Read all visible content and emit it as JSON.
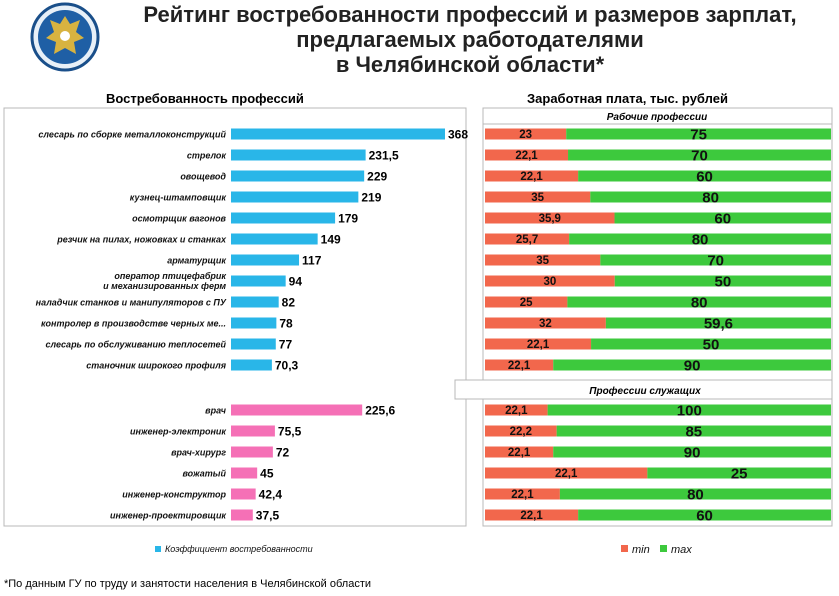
{
  "title": {
    "line1": "Рейтинг востребованности профессий и размеров зарплат,",
    "line2": "предлагаемых работодателями",
    "line3": "в Челябинской области*"
  },
  "left_header": "Востребованность профессий",
  "right_header": "Заработная плата, тыс. рублей",
  "section_worker": "Рабочие профессии",
  "section_employee": "Профессии служащих",
  "legend_left": "Коэффициент востребованности",
  "legend_min": "min",
  "legend_max": "max",
  "footnote": "*По данным ГУ по труду и занятости населения в Челябинской области",
  "colors": {
    "worker": "#29b6e8",
    "employee": "#f570b6",
    "min": "#f2674c",
    "max": "#3dc93d"
  },
  "chart_data": [
    {
      "type": "bar",
      "orientation": "horizontal",
      "legend": [
        "Коэффициент востребованности"
      ],
      "categories": [
        "слесарь по сборке металлоконструкций",
        "стрелок",
        "овощевод",
        "кузнец-штамповщик",
        "осмотрщик вагонов",
        "резчик на пилах,  ножовках и станках",
        "арматурщик",
        "оператор птицефабрик\nи механизированных ферм",
        "наладчик станков и манипуляторов  с ПУ",
        "контролер в производстве черных ме...",
        "слесарь по обслуживанию теплосетей",
        "станочник широкого профиля",
        "врач",
        "инженер-электроник",
        "врач-хирург",
        "вожатый",
        "инженер-конструктор",
        "инженер-проектировщик"
      ],
      "groups": [
        "worker",
        "worker",
        "worker",
        "worker",
        "worker",
        "worker",
        "worker",
        "worker",
        "worker",
        "worker",
        "worker",
        "worker",
        "employee",
        "employee",
        "employee",
        "employee",
        "employee",
        "employee"
      ],
      "values": [
        368,
        231.5,
        229,
        219,
        179,
        149,
        117,
        94,
        82,
        78,
        77,
        70.3,
        225.6,
        75.5,
        72,
        45,
        42.4,
        37.5
      ],
      "value_labels": [
        "368",
        "231,5",
        "229",
        "219",
        "179",
        "149",
        "117",
        "94",
        "82",
        "78",
        "77",
        "70,3",
        "225,6",
        "75,5",
        "72",
        "45",
        "42,4",
        "37,5"
      ]
    },
    {
      "type": "bar",
      "orientation": "horizontal",
      "stacked": true,
      "percent": true,
      "series": [
        {
          "name": "min",
          "values": [
            23,
            22.1,
            22.1,
            35,
            35.9,
            25.7,
            35,
            30,
            25,
            32,
            22.1,
            22.1,
            22.1,
            22.2,
            22.1,
            22.1,
            22.1,
            22.1
          ],
          "labels": [
            "23",
            "22,1",
            "22,1",
            "35",
            "35,9",
            "25,7",
            "35",
            "30",
            "25",
            "32",
            "22,1",
            "22,1",
            "22,1",
            "22,2",
            "22,1",
            "22,1",
            "22,1",
            "22,1"
          ]
        },
        {
          "name": "max",
          "values": [
            75,
            70,
            60,
            80,
            60,
            80,
            70,
            50,
            80,
            59.6,
            50,
            90,
            100,
            85,
            90,
            25,
            80,
            60
          ],
          "labels": [
            "75",
            "70",
            "60",
            "80",
            "60",
            "80",
            "70",
            "50",
            "80",
            "59,6",
            "50",
            "90",
            "100",
            "85",
            "90",
            "25",
            "80",
            "60"
          ]
        }
      ]
    }
  ]
}
